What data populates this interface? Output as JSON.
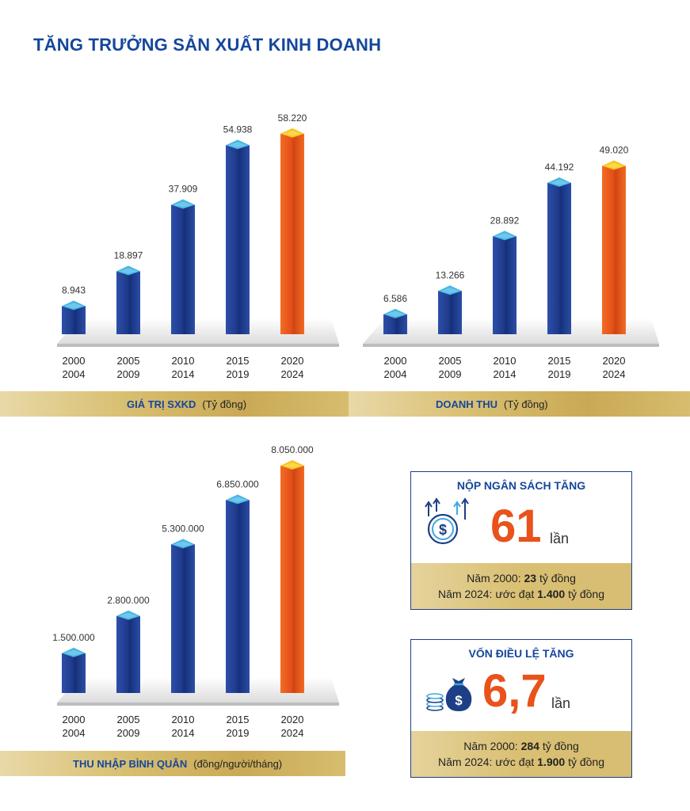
{
  "page": {
    "title": "TĂNG TRƯỞNG SẢN XUẤT KINH DOANH"
  },
  "colors": {
    "title_blue": "#15479b",
    "bar_blue": "#1f3f96",
    "bar_orange": "#ef5a1f",
    "stat_orange": "#e9521b",
    "gold_band": "#d4b868"
  },
  "chart_data": [
    {
      "type": "bar",
      "id": "sxkd",
      "title": "GIÁ TRỊ SXKD",
      "unit": "(Tỷ đồng)",
      "categories": [
        [
          "2000",
          "2004"
        ],
        [
          "2005",
          "2009"
        ],
        [
          "2010",
          "2014"
        ],
        [
          "2015",
          "2019"
        ],
        [
          "2020",
          "2024"
        ]
      ],
      "values": [
        8943,
        18897,
        37909,
        54938,
        58220
      ],
      "value_labels": [
        "8.943",
        "18.897",
        "37.909",
        "54.938",
        "58.220"
      ],
      "highlight_index": 4,
      "xlabel": "",
      "ylabel": "",
      "ylim": [
        0,
        60000
      ],
      "grid": false,
      "legend": "none"
    },
    {
      "type": "bar",
      "id": "doanh-thu",
      "title": "DOANH THU",
      "unit": "(Tỷ đồng)",
      "categories": [
        [
          "2000",
          "2004"
        ],
        [
          "2005",
          "2009"
        ],
        [
          "2010",
          "2014"
        ],
        [
          "2015",
          "2019"
        ],
        [
          "2020",
          "2024"
        ]
      ],
      "values": [
        6586,
        13266,
        28892,
        44192,
        49020
      ],
      "value_labels": [
        "6.586",
        "13.266",
        "28.892",
        "44.192",
        "49.020"
      ],
      "highlight_index": 4,
      "xlabel": "",
      "ylabel": "",
      "ylim": [
        0,
        60000
      ],
      "grid": false,
      "legend": "none"
    },
    {
      "type": "bar",
      "id": "thu-nhap",
      "title": "THU NHẬP BÌNH QUÂN",
      "unit": "(đồng/người/tháng)",
      "categories": [
        [
          "2000",
          "2004"
        ],
        [
          "2005",
          "2009"
        ],
        [
          "2010",
          "2014"
        ],
        [
          "2015",
          "2019"
        ],
        [
          "2020",
          "2024"
        ]
      ],
      "values": [
        1500000,
        2800000,
        5300000,
        6850000,
        8050000
      ],
      "value_labels": [
        "1.500.000",
        "2.800.000",
        "5.300.000",
        "6.850.000",
        "8.050.000"
      ],
      "highlight_index": 4,
      "xlabel": "",
      "ylabel": "",
      "ylim": [
        0,
        8300000
      ],
      "grid": false,
      "legend": "none"
    }
  ],
  "stats": [
    {
      "title": "NỘP NGÂN SÁCH TĂNG",
      "icon": "money-growth-icon",
      "number": "61",
      "unit": "lần",
      "line1_prefix": "Năm 2000: ",
      "line1_value": "23",
      "line1_suffix": " tỷ đồng",
      "line2_prefix": "Năm 2024: ước đạt ",
      "line2_value": "1.400",
      "line2_suffix": " tỷ đồng"
    },
    {
      "title": "VỐN ĐIỀU LỆ TĂNG",
      "icon": "money-bag-coins-icon",
      "number": "6,7",
      "unit": "lần",
      "line1_prefix": "Năm 2000: ",
      "line1_value": "284",
      "line1_suffix": " tỷ đồng",
      "line2_prefix": "Năm 2024: ước đạt ",
      "line2_value": "1.900",
      "line2_suffix": " tỷ đồng"
    }
  ]
}
